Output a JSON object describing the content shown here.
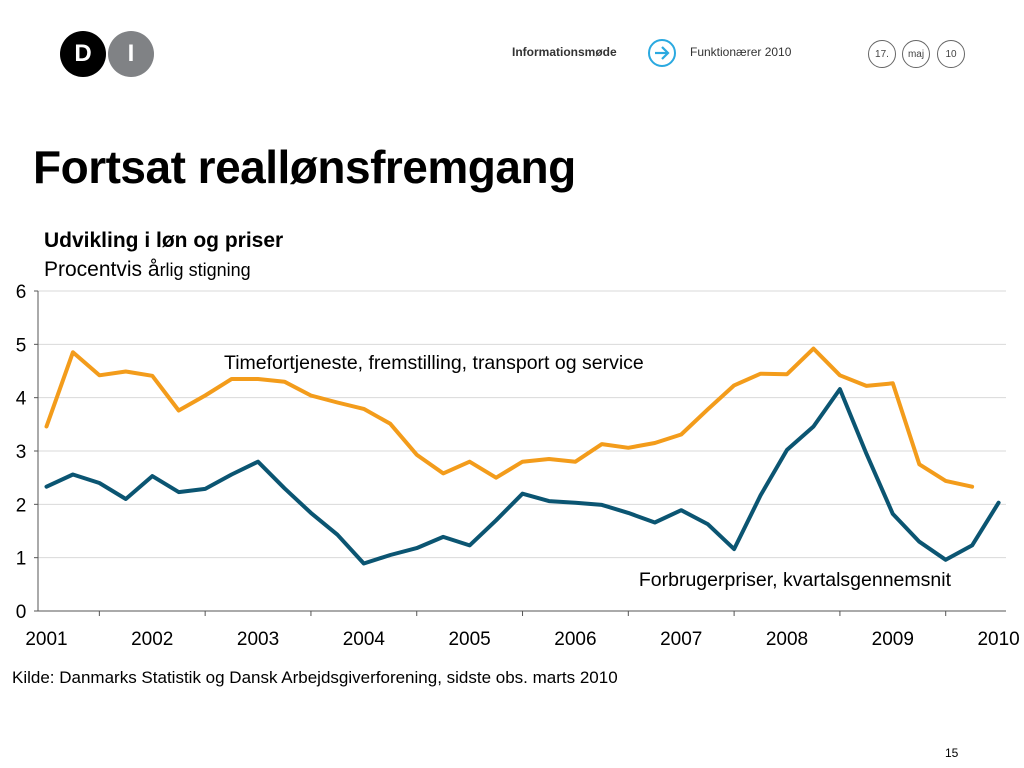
{
  "header": {
    "logo_letters": [
      "D",
      "I"
    ],
    "title": "Informationsmøde",
    "subtitle": "Funktionærer 2010",
    "date": [
      "17.",
      "maj",
      "10"
    ],
    "arrow_icon": "arrow-right-circle-icon"
  },
  "slide": {
    "title": "Fortsat reallønsfremgang",
    "source": "Kilde: Danmarks Statistik og Dansk Arbejdsgiverforening, sidste obs. marts 2010",
    "page_number": "15"
  },
  "chart_data": {
    "type": "line",
    "title": "Udvikling i løn og priser",
    "subtitle_main": "Procentvis å",
    "subtitle_small": "rlig stigning",
    "ylim": [
      0,
      6
    ],
    "yticks": [
      0,
      1,
      2,
      3,
      4,
      5,
      6
    ],
    "xlim": [
      2000.92,
      2010.07
    ],
    "xtick_labels": [
      "2001",
      "2002",
      "2003",
      "2004",
      "2005",
      "2006",
      "2007",
      "2008",
      "2009",
      "2010"
    ],
    "grid": true,
    "series": [
      {
        "name": "Timefortjeneste, fremstilling, transport og service",
        "color": "#F39C1B",
        "x_start": 2001.0,
        "step": 0.25,
        "values": [
          3.46,
          4.85,
          4.42,
          4.49,
          4.41,
          3.76,
          4.04,
          4.35,
          4.35,
          4.3,
          4.04,
          3.91,
          3.79,
          3.51,
          2.93,
          2.58,
          2.8,
          2.5,
          2.8,
          2.85,
          2.8,
          3.13,
          3.06,
          3.15,
          3.31,
          3.78,
          4.23,
          4.45,
          4.44,
          4.92,
          4.42,
          4.22,
          4.27,
          2.75,
          2.44,
          2.33
        ]
      },
      {
        "name": "Forbrugerpriser, kvartalsgennemsnit",
        "color": "#0B5572",
        "x_start": 2001.0,
        "step": 0.25,
        "values": [
          2.33,
          2.56,
          2.4,
          2.1,
          2.53,
          2.23,
          2.29,
          2.56,
          2.8,
          2.3,
          1.84,
          1.43,
          0.89,
          1.05,
          1.18,
          1.39,
          1.23,
          1.7,
          2.2,
          2.06,
          2.03,
          1.99,
          1.84,
          1.66,
          1.89,
          1.63,
          1.16,
          2.17,
          3.02,
          3.46,
          4.16,
          2.95,
          1.82,
          1.3,
          0.96,
          1.23,
          2.03
        ]
      }
    ]
  }
}
